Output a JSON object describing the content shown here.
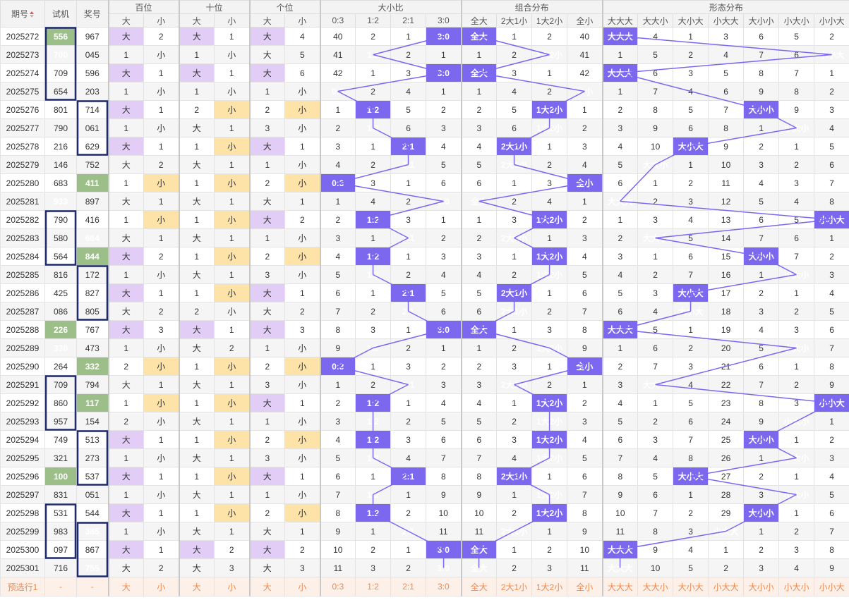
{
  "header": {
    "period": "期号",
    "trial": "试机",
    "prize": "奖号",
    "hundreds": "百位",
    "tens": "十位",
    "ones": "个位",
    "big": "大",
    "small": "小",
    "size_ratio": "大小比",
    "ratios": [
      "0:3",
      "1:2",
      "2:1",
      "3:0"
    ],
    "combo": "组合分布",
    "combos": [
      "全大",
      "2大1小",
      "1大2小",
      "全小"
    ],
    "shape": "形态分布",
    "shapes": [
      "大大大",
      "大大小",
      "大小大",
      "小大大",
      "大小小",
      "小大小",
      "小小大"
    ],
    "sort_icon": "sort-arrows"
  },
  "rows": [
    {
      "p": "2025272",
      "t": "556",
      "n": "967",
      "h": [
        "B",
        "2"
      ],
      "te": [
        "B",
        "1"
      ],
      "o": [
        "B",
        "4"
      ],
      "r": [
        40,
        2,
        1,
        0
      ],
      "c": [
        0,
        1,
        2,
        40
      ],
      "f": [
        0,
        4,
        1,
        3,
        6,
        5,
        2
      ]
    },
    {
      "p": "2025273",
      "t": "700",
      "n": "045",
      "h": [
        "1",
        "S"
      ],
      "te": [
        "1",
        "S"
      ],
      "o": [
        "B",
        "5"
      ],
      "r": [
        41,
        0,
        2,
        1
      ],
      "c": [
        1,
        2,
        0,
        41
      ],
      "f": [
        1,
        5,
        2,
        4,
        7,
        6,
        0
      ]
    },
    {
      "p": "2025274",
      "t": "709",
      "n": "596",
      "h": [
        "B",
        "1"
      ],
      "te": [
        "B",
        "1"
      ],
      "o": [
        "B",
        "6"
      ],
      "r": [
        42,
        1,
        3,
        0
      ],
      "c": [
        0,
        3,
        1,
        42
      ],
      "f": [
        0,
        6,
        3,
        5,
        8,
        7,
        1
      ]
    },
    {
      "p": "2025275",
      "t": "654",
      "n": "203",
      "h": [
        "1",
        "S"
      ],
      "te": [
        "1",
        "S"
      ],
      "o": [
        "1",
        "S"
      ],
      "r": [
        0,
        2,
        4,
        1
      ],
      "c": [
        1,
        4,
        2,
        0
      ],
      "f": [
        1,
        7,
        4,
        6,
        9,
        8,
        2
      ]
    },
    {
      "p": "2025276",
      "t": "801",
      "n": "714",
      "h": [
        "B",
        "1"
      ],
      "te": [
        "2",
        "S"
      ],
      "o": [
        "2",
        "S"
      ],
      "r": [
        1,
        0,
        5,
        2
      ],
      "c": [
        2,
        5,
        0,
        1
      ],
      "f": [
        2,
        8,
        5,
        7,
        0,
        9,
        3
      ]
    },
    {
      "p": "2025277",
      "t": "790",
      "n": "061",
      "h": [
        "1",
        "S"
      ],
      "te": [
        "B",
        "1"
      ],
      "o": [
        "3",
        "S"
      ],
      "r": [
        2,
        0,
        6,
        3
      ],
      "c": [
        3,
        6,
        0,
        2
      ],
      "f": [
        3,
        9,
        6,
        8,
        1,
        0,
        4
      ]
    },
    {
      "p": "2025278",
      "t": "216",
      "n": "629",
      "h": [
        "B",
        "1"
      ],
      "te": [
        "1",
        "S"
      ],
      "o": [
        "B",
        "1"
      ],
      "r": [
        3,
        1,
        0,
        4
      ],
      "c": [
        4,
        0,
        1,
        3
      ],
      "f": [
        4,
        10,
        0,
        9,
        2,
        1,
        5
      ]
    },
    {
      "p": "2025279",
      "t": "146",
      "n": "752",
      "h": [
        "B",
        "2"
      ],
      "te": [
        "B",
        "1"
      ],
      "o": [
        "1",
        "S"
      ],
      "r": [
        4,
        2,
        0,
        5
      ],
      "c": [
        5,
        0,
        2,
        4
      ],
      "f": [
        5,
        0,
        1,
        10,
        3,
        2,
        6
      ]
    },
    {
      "p": "2025280",
      "t": "683",
      "n": "411",
      "h": [
        "1",
        "S"
      ],
      "te": [
        "1",
        "S"
      ],
      "o": [
        "2",
        "S"
      ],
      "r": [
        0,
        3,
        1,
        6
      ],
      "c": [
        6,
        1,
        3,
        0
      ],
      "f": [
        6,
        1,
        2,
        11,
        4,
        3,
        7
      ]
    },
    {
      "p": "2025281",
      "t": "933",
      "n": "897",
      "h": [
        "B",
        "1"
      ],
      "te": [
        "B",
        "1"
      ],
      "o": [
        "B",
        "1"
      ],
      "r": [
        1,
        4,
        2,
        0
      ],
      "c": [
        0,
        2,
        4,
        1
      ],
      "f": [
        0,
        2,
        3,
        12,
        5,
        4,
        8
      ]
    },
    {
      "p": "2025282",
      "t": "790",
      "n": "416",
      "h": [
        "1",
        "S"
      ],
      "te": [
        "1",
        "S"
      ],
      "o": [
        "B",
        "2"
      ],
      "r": [
        2,
        0,
        3,
        1
      ],
      "c": [
        1,
        3,
        0,
        2
      ],
      "f": [
        1,
        3,
        4,
        13,
        6,
        5,
        0
      ]
    },
    {
      "p": "2025283",
      "t": "580",
      "n": "664",
      "h": [
        "B",
        "1"
      ],
      "te": [
        "B",
        "1"
      ],
      "o": [
        "1",
        "S"
      ],
      "r": [
        3,
        1,
        0,
        2
      ],
      "c": [
        2,
        0,
        1,
        3
      ],
      "f": [
        2,
        0,
        5,
        14,
        7,
        6,
        1
      ]
    },
    {
      "p": "2025284",
      "t": "564",
      "n": "844",
      "h": [
        "B",
        "2"
      ],
      "te": [
        "1",
        "S"
      ],
      "o": [
        "2",
        "S"
      ],
      "r": [
        4,
        0,
        1,
        3
      ],
      "c": [
        3,
        1,
        0,
        4
      ],
      "f": [
        3,
        1,
        6,
        15,
        0,
        7,
        2
      ]
    },
    {
      "p": "2025285",
      "t": "816",
      "n": "172",
      "h": [
        "1",
        "S"
      ],
      "te": [
        "B",
        "1"
      ],
      "o": [
        "3",
        "S"
      ],
      "r": [
        5,
        0,
        2,
        4
      ],
      "c": [
        4,
        2,
        0,
        5
      ],
      "f": [
        4,
        2,
        7,
        16,
        1,
        0,
        3
      ]
    },
    {
      "p": "2025286",
      "t": "425",
      "n": "827",
      "h": [
        "B",
        "1"
      ],
      "te": [
        "1",
        "S"
      ],
      "o": [
        "B",
        "1"
      ],
      "r": [
        6,
        1,
        0,
        5
      ],
      "c": [
        5,
        0,
        1,
        6
      ],
      "f": [
        5,
        3,
        0,
        17,
        2,
        1,
        4
      ]
    },
    {
      "p": "2025287",
      "t": "086",
      "n": "805",
      "h": [
        "B",
        "2"
      ],
      "te": [
        "2",
        "S"
      ],
      "o": [
        "B",
        "2"
      ],
      "r": [
        7,
        2,
        0,
        6
      ],
      "c": [
        6,
        0,
        2,
        7
      ],
      "f": [
        6,
        4,
        0,
        18,
        3,
        2,
        5
      ]
    },
    {
      "p": "2025288",
      "t": "226",
      "n": "767",
      "h": [
        "B",
        "3"
      ],
      "te": [
        "B",
        "1"
      ],
      "o": [
        "B",
        "3"
      ],
      "r": [
        8,
        3,
        1,
        0
      ],
      "c": [
        0,
        1,
        3,
        8
      ],
      "f": [
        0,
        5,
        1,
        19,
        4,
        3,
        6
      ]
    },
    {
      "p": "2025289",
      "t": "330",
      "n": "473",
      "h": [
        "1",
        "S"
      ],
      "te": [
        "B",
        "2"
      ],
      "o": [
        "1",
        "S"
      ],
      "r": [
        9,
        0,
        2,
        1
      ],
      "c": [
        1,
        2,
        0,
        9
      ],
      "f": [
        1,
        6,
        2,
        20,
        5,
        0,
        7
      ]
    },
    {
      "p": "2025290",
      "t": "264",
      "n": "332",
      "h": [
        "2",
        "S"
      ],
      "te": [
        "1",
        "S"
      ],
      "o": [
        "2",
        "S"
      ],
      "r": [
        0,
        1,
        3,
        2
      ],
      "c": [
        2,
        3,
        1,
        0
      ],
      "f": [
        2,
        7,
        3,
        21,
        6,
        1,
        8
      ]
    },
    {
      "p": "2025291",
      "t": "709",
      "n": "794",
      "h": [
        "B",
        "1"
      ],
      "te": [
        "B",
        "1"
      ],
      "o": [
        "3",
        "S"
      ],
      "r": [
        1,
        2,
        0,
        3
      ],
      "c": [
        3,
        0,
        2,
        1
      ],
      "f": [
        3,
        0,
        4,
        22,
        7,
        2,
        9
      ]
    },
    {
      "p": "2025292",
      "t": "860",
      "n": "117",
      "h": [
        "1",
        "S"
      ],
      "te": [
        "1",
        "S"
      ],
      "o": [
        "B",
        "1"
      ],
      "r": [
        2,
        0,
        1,
        4
      ],
      "c": [
        4,
        1,
        0,
        2
      ],
      "f": [
        4,
        1,
        5,
        23,
        8,
        3,
        0
      ]
    },
    {
      "p": "2025293",
      "t": "957",
      "n": "154",
      "h": [
        "2",
        "S"
      ],
      "te": [
        "B",
        "1"
      ],
      "o": [
        "1",
        "S"
      ],
      "r": [
        3,
        0,
        2,
        5
      ],
      "c": [
        5,
        2,
        0,
        3
      ],
      "f": [
        5,
        2,
        6,
        24,
        9,
        0,
        1
      ]
    },
    {
      "p": "2025294",
      "t": "749",
      "n": "513",
      "h": [
        "B",
        "1"
      ],
      "te": [
        "1",
        "S"
      ],
      "o": [
        "2",
        "S"
      ],
      "r": [
        4,
        0,
        3,
        6
      ],
      "c": [
        6,
        3,
        0,
        4
      ],
      "f": [
        6,
        3,
        7,
        25,
        0,
        1,
        2
      ]
    },
    {
      "p": "2025295",
      "t": "321",
      "n": "273",
      "h": [
        "1",
        "S"
      ],
      "te": [
        "B",
        "1"
      ],
      "o": [
        "3",
        "S"
      ],
      "r": [
        5,
        0,
        4,
        7
      ],
      "c": [
        7,
        4,
        0,
        5
      ],
      "f": [
        7,
        4,
        8,
        26,
        1,
        0,
        3
      ]
    },
    {
      "p": "2025296",
      "t": "100",
      "n": "537",
      "h": [
        "B",
        "1"
      ],
      "te": [
        "1",
        "S"
      ],
      "o": [
        "B",
        "1"
      ],
      "r": [
        6,
        1,
        0,
        8
      ],
      "c": [
        8,
        0,
        1,
        6
      ],
      "f": [
        8,
        5,
        0,
        27,
        2,
        1,
        4
      ]
    },
    {
      "p": "2025297",
      "t": "831",
      "n": "051",
      "h": [
        "1",
        "S"
      ],
      "te": [
        "B",
        "1"
      ],
      "o": [
        "1",
        "S"
      ],
      "r": [
        7,
        0,
        1,
        9
      ],
      "c": [
        9,
        1,
        0,
        7
      ],
      "f": [
        9,
        6,
        1,
        28,
        3,
        0,
        5
      ]
    },
    {
      "p": "2025298",
      "t": "531",
      "n": "544",
      "h": [
        "B",
        "1"
      ],
      "te": [
        "1",
        "S"
      ],
      "o": [
        "2",
        "S"
      ],
      "r": [
        8,
        0,
        2,
        10
      ],
      "c": [
        10,
        2,
        0,
        8
      ],
      "f": [
        10,
        7,
        2,
        29,
        0,
        1,
        6
      ]
    },
    {
      "p": "2025299",
      "t": "983",
      "n": "385",
      "h": [
        "1",
        "S"
      ],
      "te": [
        "B",
        "1"
      ],
      "o": [
        "B",
        "1"
      ],
      "r": [
        9,
        1,
        0,
        11
      ],
      "c": [
        11,
        0,
        1,
        9
      ],
      "f": [
        11,
        8,
        3,
        0,
        1,
        2,
        7
      ]
    },
    {
      "p": "2025300",
      "t": "097",
      "n": "867",
      "h": [
        "B",
        "1"
      ],
      "te": [
        "B",
        "2"
      ],
      "o": [
        "B",
        "2"
      ],
      "r": [
        10,
        2,
        1,
        0
      ],
      "c": [
        0,
        1,
        2,
        10
      ],
      "f": [
        0,
        9,
        4,
        1,
        2,
        3,
        8
      ]
    },
    {
      "p": "2025301",
      "t": "716",
      "n": "755",
      "h": [
        "B",
        "2"
      ],
      "te": [
        "B",
        "3"
      ],
      "o": [
        "B",
        "3"
      ],
      "r": [
        11,
        3,
        2,
        0
      ],
      "c": [
        0,
        2,
        3,
        11
      ],
      "f": [
        0,
        10,
        5,
        2,
        3,
        4,
        9
      ]
    }
  ],
  "green_trial": [
    0,
    1,
    9,
    16,
    17,
    24
  ],
  "green_prize": [
    8,
    11,
    12,
    18,
    20,
    27,
    29
  ],
  "trial_boxes": [
    [
      0,
      3
    ],
    [
      10,
      12
    ],
    [
      19,
      21
    ],
    [
      26,
      28
    ]
  ],
  "prize_boxes": [
    [
      4,
      6
    ],
    [
      13,
      15
    ],
    [
      22,
      24
    ],
    [
      27,
      29
    ]
  ],
  "footer": {
    "label": "预选行1",
    "dash": "-",
    "cells": [
      "大",
      "小",
      "大",
      "小",
      "大",
      "小",
      "0:3",
      "1:2",
      "2:1",
      "3:0",
      "全大",
      "2大1小",
      "1大2小",
      "全小",
      "大大大",
      "大大小",
      "大小大",
      "小大大",
      "大小小",
      "小大小",
      "小小大"
    ]
  },
  "colors": {
    "big": "#e2cdf7",
    "small": "#fde3a7",
    "hit": "#7b68ee",
    "green": "#9cbf8a",
    "box": "#1f2a6b",
    "line": "#7b68ee",
    "footer": "#f08a4b"
  }
}
